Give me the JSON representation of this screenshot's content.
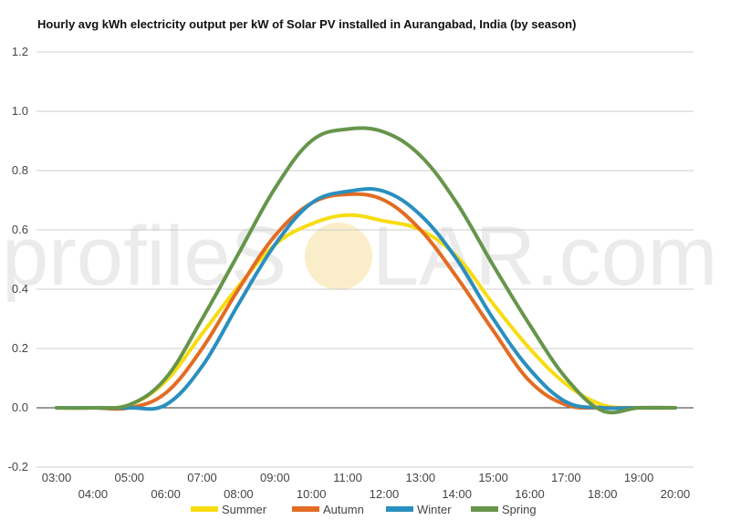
{
  "chart_data": {
    "type": "line",
    "title": "Hourly avg kWh electricity output per kW of Solar PV installed in Aurangabad, India (by season)",
    "xlabel": "",
    "ylabel": "",
    "ylim": [
      -0.2,
      1.2
    ],
    "yticks": [
      "-0.2",
      "0.0",
      "0.2",
      "0.4",
      "0.6",
      "0.8",
      "1.0",
      "1.2"
    ],
    "categories": [
      "03:00",
      "04:00",
      "05:00",
      "06:00",
      "07:00",
      "08:00",
      "09:00",
      "10:00",
      "11:00",
      "12:00",
      "13:00",
      "14:00",
      "15:00",
      "16:00",
      "17:00",
      "18:00",
      "19:00",
      "20:00"
    ],
    "grid": true,
    "legend_position": "bottom",
    "series": [
      {
        "name": "Summer",
        "color": "#f7dc11",
        "values": [
          0,
          0,
          0.01,
          0.09,
          0.25,
          0.41,
          0.55,
          0.62,
          0.65,
          0.63,
          0.6,
          0.51,
          0.35,
          0.2,
          0.08,
          0.01,
          0,
          0
        ]
      },
      {
        "name": "Autumn",
        "color": "#e36c23",
        "values": [
          0,
          0,
          0,
          0.05,
          0.2,
          0.4,
          0.58,
          0.69,
          0.72,
          0.7,
          0.6,
          0.44,
          0.26,
          0.09,
          0.01,
          0,
          0,
          0
        ]
      },
      {
        "name": "Winter",
        "color": "#2a8fbf",
        "values": [
          0,
          0,
          0,
          0.01,
          0.14,
          0.35,
          0.55,
          0.69,
          0.73,
          0.73,
          0.65,
          0.5,
          0.3,
          0.13,
          0.02,
          0,
          0,
          0
        ]
      },
      {
        "name": "Spring",
        "color": "#66954b",
        "values": [
          0,
          0,
          0.01,
          0.1,
          0.3,
          0.52,
          0.74,
          0.9,
          0.94,
          0.93,
          0.85,
          0.69,
          0.48,
          0.28,
          0.1,
          -0.01,
          0,
          0
        ]
      }
    ]
  },
  "watermark": {
    "text_left": "profileS",
    "text_right": "LAR.com"
  }
}
